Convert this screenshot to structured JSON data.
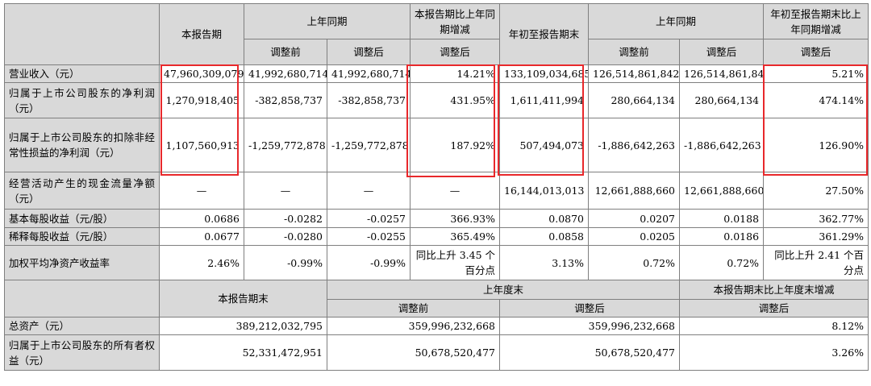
{
  "header": {
    "this_period": "本报告期",
    "last_year_period": "上年同期",
    "period_change": "本报告期比上年同期增减",
    "ytd": "年初至报告期末",
    "last_year_period_2": "上年同期",
    "ytd_change": "年初至报告期末比上年同期增减",
    "before_adjust": "调整前",
    "after_adjust": "调整后",
    "after_adjust_2": "调整后",
    "after_adjust_3": "调整前",
    "after_adjust_4": "调整后",
    "after_adjust_5": "调整后"
  },
  "rows": [
    {
      "label": "营业收入（元）",
      "v": [
        "47,960,309,079",
        "41,992,680,714",
        "41,992,680,714",
        "14.21%",
        "133,109,034,685",
        "126,514,861,842",
        "126,514,861,842",
        "5.21%"
      ]
    },
    {
      "label": "归属于上市公司股东的净利润（元）",
      "v": [
        "1,270,918,405",
        "-382,858,737",
        "-382,858,737",
        "431.95%",
        "1,611,411,994",
        "280,664,134",
        "280,664,134",
        "474.14%"
      ]
    },
    {
      "label": "归属于上市公司股东的扣除非经常性损益的净利润（元）",
      "v": [
        "1,107,560,913",
        "-1,259,772,878",
        "-1,259,772,878",
        "187.92%",
        "507,494,073",
        "-1,886,642,263",
        "-1,886,642,263",
        "126.90%"
      ]
    },
    {
      "label": "经营活动产生的现金流量净额（元）",
      "v": [
        "—",
        "—",
        "—",
        "—",
        "16,144,013,013",
        "12,661,888,660",
        "12,661,888,660",
        "27.50%"
      ]
    },
    {
      "label": "基本每股收益（元/股）",
      "v": [
        "0.0686",
        "-0.0282",
        "-0.0257",
        "366.93%",
        "0.0870",
        "0.0207",
        "0.0188",
        "362.77%"
      ]
    },
    {
      "label": "稀释每股收益（元/股）",
      "v": [
        "0.0677",
        "-0.0280",
        "-0.0255",
        "365.49%",
        "0.0858",
        "0.0205",
        "0.0186",
        "361.29%"
      ]
    },
    {
      "label": "加权平均净资产收益率",
      "v": [
        "2.46%",
        "-0.99%",
        "-0.99%",
        "同比上升 3.45 个百分点",
        "3.13%",
        "0.72%",
        "0.72%",
        "同比上升 2.41 个百分点"
      ]
    }
  ],
  "bottom_header": {
    "period_end": "本报告期末",
    "last_year_end": "上年度末",
    "change": "本报告期末比上年度末增减",
    "before_adjust": "调整前",
    "after_adjust": "调整后",
    "after_adjust_2": "调整后"
  },
  "bottom_rows": [
    {
      "label": "总资产（元）",
      "v": [
        "389,212,032,795",
        "359,996,232,668",
        "359,996,232,668",
        "8.12%"
      ]
    },
    {
      "label": "归属于上市公司股东的所有者权益（元）",
      "v": [
        "52,331,472,951",
        "50,678,520,477",
        "50,678,520,477",
        "3.26%"
      ]
    }
  ],
  "highlight_color": "#e8282b"
}
